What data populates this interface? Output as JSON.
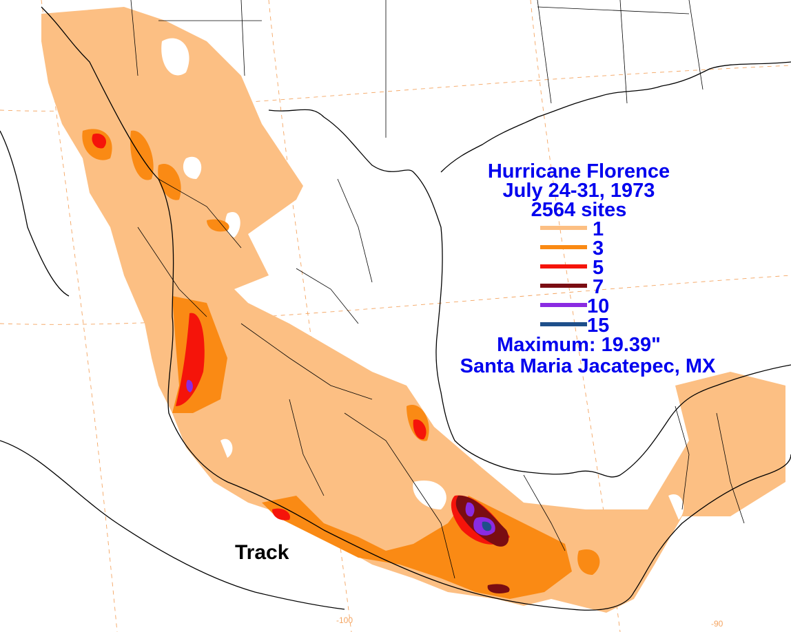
{
  "title": {
    "line1": "Hurricane Florence",
    "line2": "July 24-31, 1973",
    "line3": "2564 sites"
  },
  "legend": [
    {
      "label": "1",
      "color": "#fcbf83"
    },
    {
      "label": "3",
      "color": "#fa8a14"
    },
    {
      "label": "5",
      "color": "#f5140a"
    },
    {
      "label": "7",
      "color": "#7a0d12"
    },
    {
      "label": "10",
      "color": "#8a2be2"
    },
    {
      "label": "15",
      "color": "#1e4f8a"
    }
  ],
  "maximum": {
    "line1": "Maximum:  19.39\"",
    "line2": "Santa Maria Jacatepec, MX"
  },
  "track_label": "Track",
  "longitude_labels": [
    "-100",
    "-90"
  ]
}
